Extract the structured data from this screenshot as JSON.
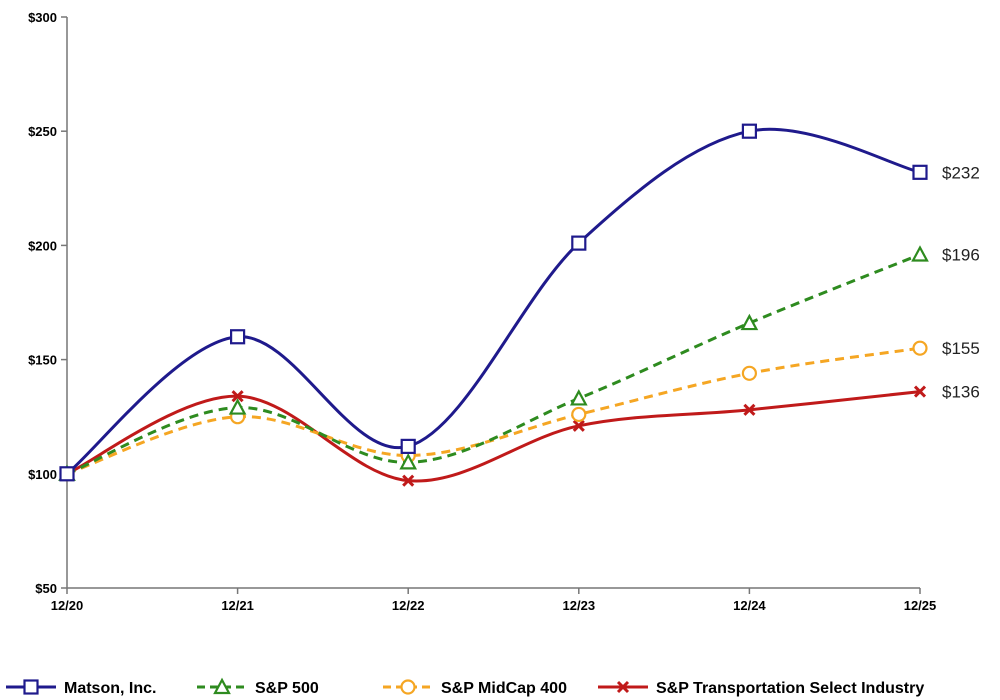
{
  "chart_data": {
    "type": "line",
    "categories": [
      "12/20",
      "12/21",
      "12/22",
      "12/23",
      "12/24",
      "12/25"
    ],
    "ylim": [
      50,
      300
    ],
    "yticks": [
      "$50",
      "$100",
      "$150",
      "$200",
      "$250",
      "$300"
    ],
    "grid": false,
    "legend_position": "bottom",
    "series": [
      {
        "name": "Matson, Inc.",
        "values": [
          100,
          160,
          112,
          201,
          250,
          232
        ],
        "end_label": "$232",
        "color": "#1f1a8c",
        "marker": "square",
        "dash": "solid"
      },
      {
        "name": "S&P 500",
        "values": [
          100,
          129,
          105,
          133,
          166,
          196
        ],
        "end_label": "$196",
        "color": "#2e8b1f",
        "marker": "triangle",
        "dash": "dashed"
      },
      {
        "name": "S&P MidCap 400",
        "values": [
          100,
          125,
          108,
          126,
          144,
          155
        ],
        "end_label": "$155",
        "color": "#f5a623",
        "marker": "circle",
        "dash": "dashed"
      },
      {
        "name": "S&P Transportation Select Industry",
        "values": [
          100,
          134,
          97,
          121,
          128,
          136
        ],
        "end_label": "$136",
        "color": "#c01a1a",
        "marker": "x",
        "dash": "solid"
      }
    ]
  }
}
